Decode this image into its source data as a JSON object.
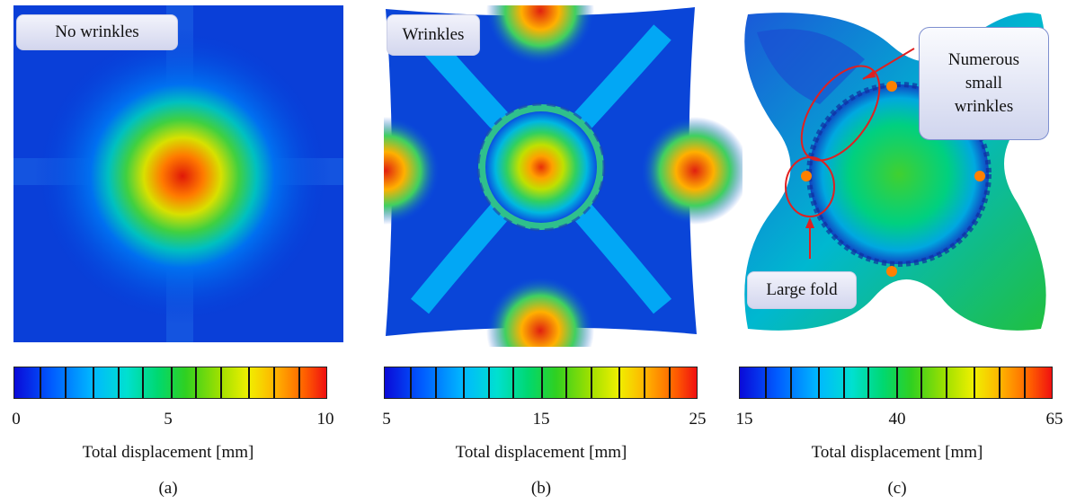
{
  "panels": [
    {
      "tag": "No wrinkles",
      "colorbar": {
        "min": "0",
        "mid": "5",
        "max": "10"
      },
      "caption": "Total displacement [mm]",
      "letter": "(a)"
    },
    {
      "tag": "Wrinkles",
      "colorbar": {
        "min": "5",
        "mid": "15",
        "max": "25"
      },
      "caption": "Total displacement [mm]",
      "letter": "(b)"
    },
    {
      "annotations": {
        "wrinkles": "Numerous\nsmall\nwrinkles",
        "fold": "Large fold"
      },
      "colorbar": {
        "min": "15",
        "mid": "40",
        "max": "65"
      },
      "caption": "Total displacement  [mm]",
      "letter": "(c)"
    }
  ],
  "colors": {
    "scale": [
      "#0a0ad8",
      "#005cff",
      "#00b8ff",
      "#00e0d0",
      "#00d870",
      "#30d020",
      "#a0e000",
      "#f0f000",
      "#ffb000",
      "#ff6000",
      "#f01010"
    ],
    "annotation_red": "#e02020"
  }
}
